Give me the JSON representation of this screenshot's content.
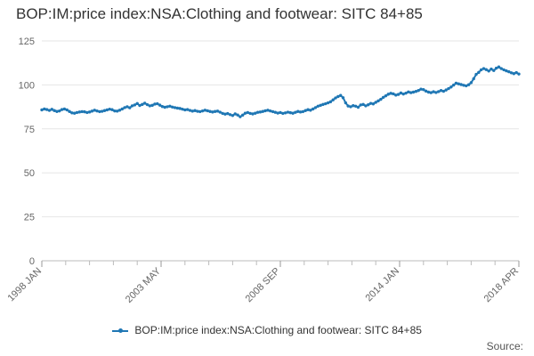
{
  "page": {
    "title": "BOP:IM:price index:NSA:Clothing and footwear: SITC 84+85",
    "source_label": "Source:"
  },
  "chart_data": {
    "type": "line",
    "title": "BOP:IM:price index:NSA:Clothing and footwear: SITC 84+85",
    "xlabel": "",
    "ylabel": "",
    "ylim": [
      0,
      125
    ],
    "yticks": [
      0,
      25,
      50,
      75,
      100,
      125
    ],
    "xtick_labels": [
      "1998 JAN",
      "2003 MAY",
      "2008 SEP",
      "2014 JAN",
      "2018 APR"
    ],
    "x_start": "1998 JAN",
    "x_end": "2018 APR",
    "grid": true,
    "legend_position": "bottom",
    "series": [
      {
        "name": "BOP:IM:price index:NSA:Clothing and footwear: SITC 84+85",
        "color": "#1f77b4",
        "values": [
          85.8,
          86.3,
          86.0,
          85.5,
          86.1,
          85.4,
          84.9,
          85.2,
          86.0,
          86.3,
          85.8,
          84.9,
          84.1,
          83.9,
          84.3,
          84.6,
          84.8,
          84.7,
          84.3,
          84.6,
          85.1,
          85.6,
          85.2,
          84.8,
          85.0,
          85.4,
          85.8,
          86.2,
          85.9,
          85.2,
          85.1,
          85.6,
          86.3,
          87.1,
          87.6,
          87.0,
          88.1,
          88.6,
          89.4,
          88.3,
          88.9,
          89.6,
          88.8,
          88.1,
          88.4,
          89.1,
          89.3,
          88.5,
          87.7,
          87.3,
          87.6,
          87.9,
          87.4,
          87.1,
          86.8,
          86.6,
          86.2,
          85.8,
          86.0,
          85.5,
          85.1,
          85.4,
          85.0,
          84.8,
          85.2,
          85.6,
          85.3,
          84.9,
          84.6,
          84.9,
          85.1,
          84.5,
          83.8,
          83.4,
          83.7,
          83.1,
          82.6,
          83.5,
          82.9,
          81.9,
          82.8,
          83.9,
          84.3,
          83.8,
          83.5,
          83.9,
          84.4,
          84.6,
          84.9,
          85.3,
          85.6,
          85.2,
          84.8,
          84.4,
          84.0,
          84.3,
          83.8,
          84.1,
          84.5,
          84.2,
          83.9,
          84.4,
          84.9,
          84.6,
          84.8,
          85.4,
          85.9,
          85.6,
          86.3,
          87.1,
          87.9,
          88.4,
          88.9,
          89.3,
          89.8,
          90.4,
          91.5,
          92.6,
          93.4,
          94.0,
          92.7,
          89.8,
          88.0,
          87.6,
          88.2,
          87.9,
          87.3,
          88.6,
          88.9,
          88.1,
          88.7,
          89.5,
          89.2,
          90.1,
          90.9,
          91.8,
          92.9,
          93.8,
          94.7,
          95.2,
          94.9,
          94.2,
          94.6,
          95.4,
          94.8,
          95.3,
          96.0,
          95.6,
          95.9,
          96.3,
          96.8,
          97.6,
          97.3,
          96.5,
          95.9,
          95.6,
          96.1,
          95.7,
          96.2,
          96.8,
          96.4,
          97.1,
          97.9,
          98.8,
          99.9,
          101.0,
          100.6,
          100.2,
          99.8,
          99.5,
          100.1,
          101.3,
          103.5,
          106.0,
          107.1,
          108.6,
          109.3,
          108.7,
          107.9,
          109.0,
          108.2,
          109.5,
          110.2,
          109.3,
          108.6,
          108.0,
          107.5,
          106.9,
          106.4,
          107.0,
          106.2
        ]
      }
    ]
  }
}
